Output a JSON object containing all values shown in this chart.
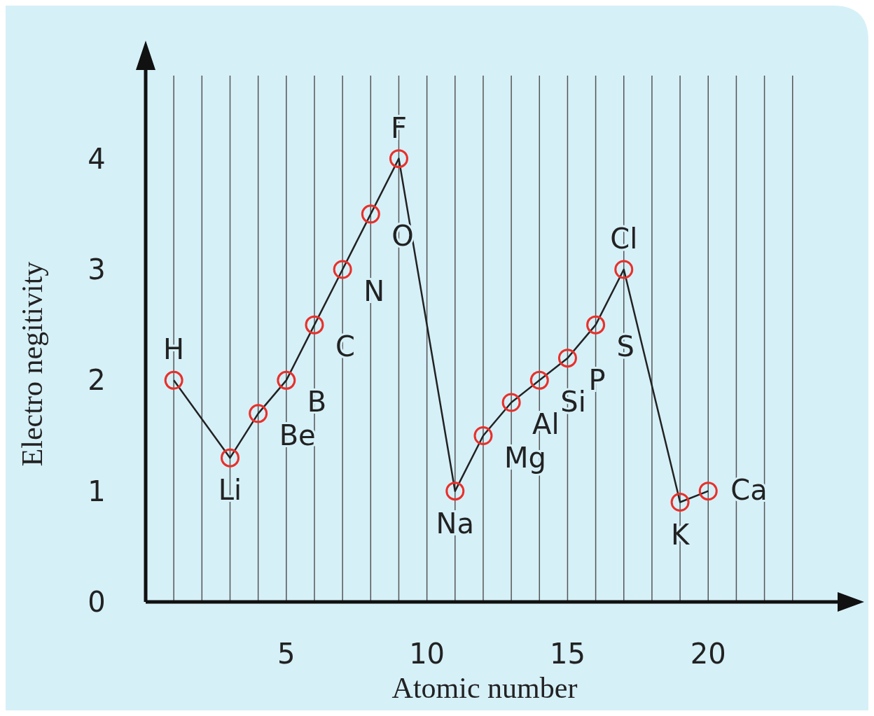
{
  "chart_data": {
    "type": "line",
    "xlabel": "Atomic number",
    "ylabel": "Electro negitivity",
    "x": [
      1,
      3,
      4,
      5,
      6,
      7,
      8,
      9,
      11,
      12,
      13,
      14,
      15,
      16,
      17,
      19,
      20
    ],
    "series": [
      {
        "color": "#e8302a",
        "values": [
          2.0,
          1.3,
          1.7,
          2.0,
          2.5,
          3.0,
          3.5,
          4.0,
          1.0,
          1.5,
          1.8,
          2.0,
          2.2,
          2.5,
          3.0,
          0.9,
          1.0
        ]
      }
    ],
    "xlim": [
      0,
      24.6
    ],
    "ylim": [
      0,
      4.8
    ],
    "xticks": [
      {
        "value": 1,
        "label": null
      },
      {
        "value": 2,
        "label": null
      },
      {
        "value": 3,
        "label": null
      },
      {
        "value": 4,
        "label": null
      },
      5,
      {
        "value": 6,
        "label": null
      },
      {
        "value": 7,
        "label": null
      },
      {
        "value": 8,
        "label": null
      },
      {
        "value": 9,
        "label": null
      },
      10,
      {
        "value": 11,
        "label": null
      },
      {
        "value": 12,
        "label": null
      },
      {
        "value": 13,
        "label": null
      },
      {
        "value": 14,
        "label": null
      },
      15,
      {
        "value": 16,
        "label": null
      },
      {
        "value": 17,
        "label": null
      },
      {
        "value": 18,
        "label": null
      },
      {
        "value": 19,
        "label": null
      },
      20,
      {
        "value": 21,
        "label": null
      },
      {
        "value": 22,
        "label": null
      },
      {
        "value": 23,
        "label": null
      }
    ],
    "yticks": [
      0,
      1,
      2,
      3,
      4
    ],
    "grid": "x",
    "marker": "circle",
    "line_style": "solid",
    "annotations": [
      {
        "text": "H",
        "x": 1,
        "y": 2.0
      },
      {
        "text": "Li",
        "x": 3,
        "y": 1.3
      },
      {
        "text": "Be",
        "x": 4,
        "y": 1.7
      },
      {
        "text": "B",
        "x": 5,
        "y": 2.0
      },
      {
        "text": "C",
        "x": 6,
        "y": 2.5
      },
      {
        "text": "N",
        "x": 7,
        "y": 3.0
      },
      {
        "text": "O",
        "x": 8,
        "y": 3.5
      },
      {
        "text": "F",
        "x": 9,
        "y": 4.0
      },
      {
        "text": "Na",
        "x": 11,
        "y": 1.0
      },
      {
        "text": "Mg",
        "x": 12,
        "y": 1.5
      },
      {
        "text": "Al",
        "x": 13,
        "y": 1.8
      },
      {
        "text": "Si",
        "x": 14,
        "y": 2.0
      },
      {
        "text": "P",
        "x": 15,
        "y": 2.2
      },
      {
        "text": "S",
        "x": 16,
        "y": 2.5
      },
      {
        "text": "Cl",
        "x": 17,
        "y": 3.0
      },
      {
        "text": "K",
        "x": 19,
        "y": 0.9
      },
      {
        "text": "Ca",
        "x": 20,
        "y": 1.0
      }
    ]
  }
}
